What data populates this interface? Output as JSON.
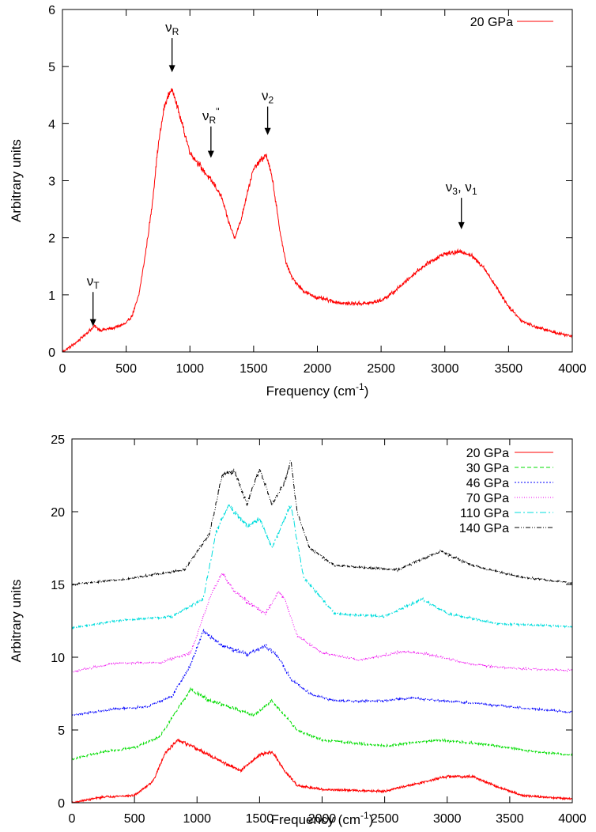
{
  "chart_data": [
    {
      "type": "line",
      "title": "",
      "xlabel": "Frequency (cm",
      "xlabel_sup": "-1",
      "xlabel_close": ")",
      "ylabel": "Arbitrary units",
      "xlim": [
        0,
        4000
      ],
      "ylim": [
        0,
        6
      ],
      "xticks": [
        "0",
        "500",
        "1000",
        "1500",
        "2000",
        "2500",
        "3000",
        "3500",
        "4000"
      ],
      "yticks": [
        "0",
        "1",
        "2",
        "3",
        "4",
        "5",
        "6"
      ],
      "legend_position": "top-right",
      "series": [
        {
          "name": "20 GPa",
          "color": "#ff0000",
          "dash": "",
          "x": [
            0,
            100,
            200,
            250,
            300,
            400,
            500,
            550,
            600,
            650,
            700,
            750,
            800,
            850,
            880,
            900,
            950,
            1000,
            1100,
            1150,
            1200,
            1250,
            1300,
            1350,
            1400,
            1450,
            1500,
            1550,
            1600,
            1650,
            1700,
            1750,
            1800,
            1900,
            2000,
            2200,
            2400,
            2500,
            2600,
            2700,
            2800,
            2900,
            3000,
            3100,
            3150,
            3200,
            3300,
            3400,
            3500,
            3600,
            3700,
            3800,
            3900,
            4000
          ],
          "y": [
            0,
            0.15,
            0.35,
            0.45,
            0.38,
            0.42,
            0.5,
            0.65,
            1.0,
            1.7,
            2.5,
            3.6,
            4.3,
            4.6,
            4.5,
            4.3,
            3.9,
            3.5,
            3.2,
            3.05,
            2.9,
            2.7,
            2.3,
            2.0,
            2.3,
            2.8,
            3.2,
            3.35,
            3.45,
            3.0,
            2.2,
            1.6,
            1.3,
            1.05,
            0.95,
            0.85,
            0.85,
            0.9,
            1.05,
            1.25,
            1.45,
            1.6,
            1.72,
            1.75,
            1.75,
            1.7,
            1.5,
            1.15,
            0.8,
            0.55,
            0.45,
            0.38,
            0.32,
            0.28
          ]
        }
      ],
      "annotations": [
        {
          "label": "ν",
          "sub": "T",
          "sup": "",
          "x": 240,
          "y_tip": 0.45,
          "y_tail": 1.05
        },
        {
          "label": "ν",
          "sub": "R",
          "sup": "",
          "x": 860,
          "y_tip": 4.9,
          "y_tail": 5.5
        },
        {
          "label": "ν",
          "sub": "R",
          "sup": "''",
          "x": 1165,
          "y_tip": 3.4,
          "y_tail": 3.95
        },
        {
          "label": "ν",
          "sub": "2",
          "sup": "",
          "x": 1610,
          "y_tip": 3.8,
          "y_tail": 4.3
        },
        {
          "label": "ν",
          "sub": "3",
          "sup": "",
          "tail": ", ν",
          "sub2": "1",
          "x": 3130,
          "y_tip": 2.15,
          "y_tail": 2.7
        }
      ]
    },
    {
      "type": "line",
      "title": "",
      "xlabel": "Frequency (cm",
      "xlabel_sup": "-1",
      "xlabel_close": ")",
      "ylabel": "Arbitrary units",
      "xlim": [
        0,
        4000
      ],
      "ylim": [
        0,
        25
      ],
      "xticks": [
        "0",
        "500",
        "1000",
        "1500",
        "2000",
        "2500",
        "3000",
        "3500",
        "4000"
      ],
      "yticks": [
        "0",
        "5",
        "10",
        "15",
        "20",
        "25"
      ],
      "legend_position": "top-right",
      "series": [
        {
          "name": "20 GPa",
          "color": "#ff0000",
          "dash": "",
          "x": [
            0,
            250,
            500,
            650,
            750,
            850,
            1000,
            1200,
            1350,
            1500,
            1600,
            1700,
            1800,
            2000,
            2500,
            3000,
            3200,
            3400,
            3600,
            4000
          ],
          "y": [
            0.0,
            0.4,
            0.5,
            1.5,
            3.5,
            4.3,
            3.7,
            2.8,
            2.2,
            3.3,
            3.5,
            2.2,
            1.2,
            0.9,
            0.8,
            1.8,
            1.8,
            1.1,
            0.5,
            0.25
          ]
        },
        {
          "name": "30 GPa",
          "color": "#00dd00",
          "dash": "5,3",
          "x": [
            0,
            250,
            500,
            700,
            850,
            950,
            1100,
            1300,
            1450,
            1600,
            1700,
            1800,
            2000,
            2500,
            2900,
            3100,
            3400,
            3700,
            4000
          ],
          "y": [
            3.0,
            3.5,
            3.8,
            4.5,
            6.5,
            7.8,
            7.0,
            6.5,
            6.0,
            7.0,
            6.0,
            5.0,
            4.3,
            3.9,
            4.3,
            4.2,
            3.9,
            3.5,
            3.3
          ]
        },
        {
          "name": "46 GPa",
          "color": "#0000ff",
          "dash": "2,2",
          "x": [
            0,
            300,
            600,
            800,
            950,
            1050,
            1200,
            1400,
            1550,
            1650,
            1750,
            1900,
            2100,
            2500,
            2700,
            3000,
            3500,
            4000
          ],
          "y": [
            6.0,
            6.4,
            6.6,
            7.3,
            9.5,
            11.8,
            10.8,
            10.2,
            10.8,
            10.0,
            8.5,
            7.5,
            7.0,
            7.0,
            7.2,
            7.0,
            6.6,
            6.2
          ]
        },
        {
          "name": "70 GPa",
          "color": "#ee00ee",
          "dash": "1,2",
          "x": [
            0,
            350,
            700,
            950,
            1100,
            1200,
            1300,
            1450,
            1550,
            1650,
            1700,
            1800,
            2000,
            2300,
            2650,
            2850,
            3200,
            3600,
            4000
          ],
          "y": [
            9.0,
            9.6,
            9.6,
            10.3,
            14.0,
            15.8,
            14.5,
            13.5,
            13.0,
            14.5,
            14.0,
            11.5,
            10.3,
            9.8,
            10.4,
            10.2,
            9.5,
            9.2,
            9.1
          ]
        },
        {
          "name": "110 GPa",
          "color": "#00dddd",
          "dash": "8,3,2,3",
          "x": [
            0,
            350,
            800,
            1050,
            1150,
            1250,
            1400,
            1500,
            1600,
            1700,
            1750,
            1850,
            2100,
            2500,
            2800,
            3000,
            3400,
            4000
          ],
          "y": [
            12.0,
            12.5,
            12.8,
            14.0,
            18.5,
            20.5,
            19.0,
            19.5,
            17.5,
            19.5,
            20.5,
            15.5,
            13.0,
            12.8,
            14.0,
            13.0,
            12.3,
            12.1
          ]
        },
        {
          "name": "140 GPa",
          "color": "#000000",
          "dash": "6,2,1,2,1,2",
          "x": [
            0,
            450,
            900,
            1100,
            1200,
            1300,
            1400,
            1500,
            1600,
            1700,
            1750,
            1800,
            1900,
            2100,
            2600,
            2950,
            3200,
            3600,
            4000
          ],
          "y": [
            15.0,
            15.4,
            16.0,
            18.5,
            22.5,
            22.8,
            20.5,
            23.0,
            20.5,
            22.0,
            23.5,
            20.0,
            17.5,
            16.3,
            16.0,
            17.3,
            16.3,
            15.5,
            15.1
          ]
        }
      ]
    }
  ]
}
